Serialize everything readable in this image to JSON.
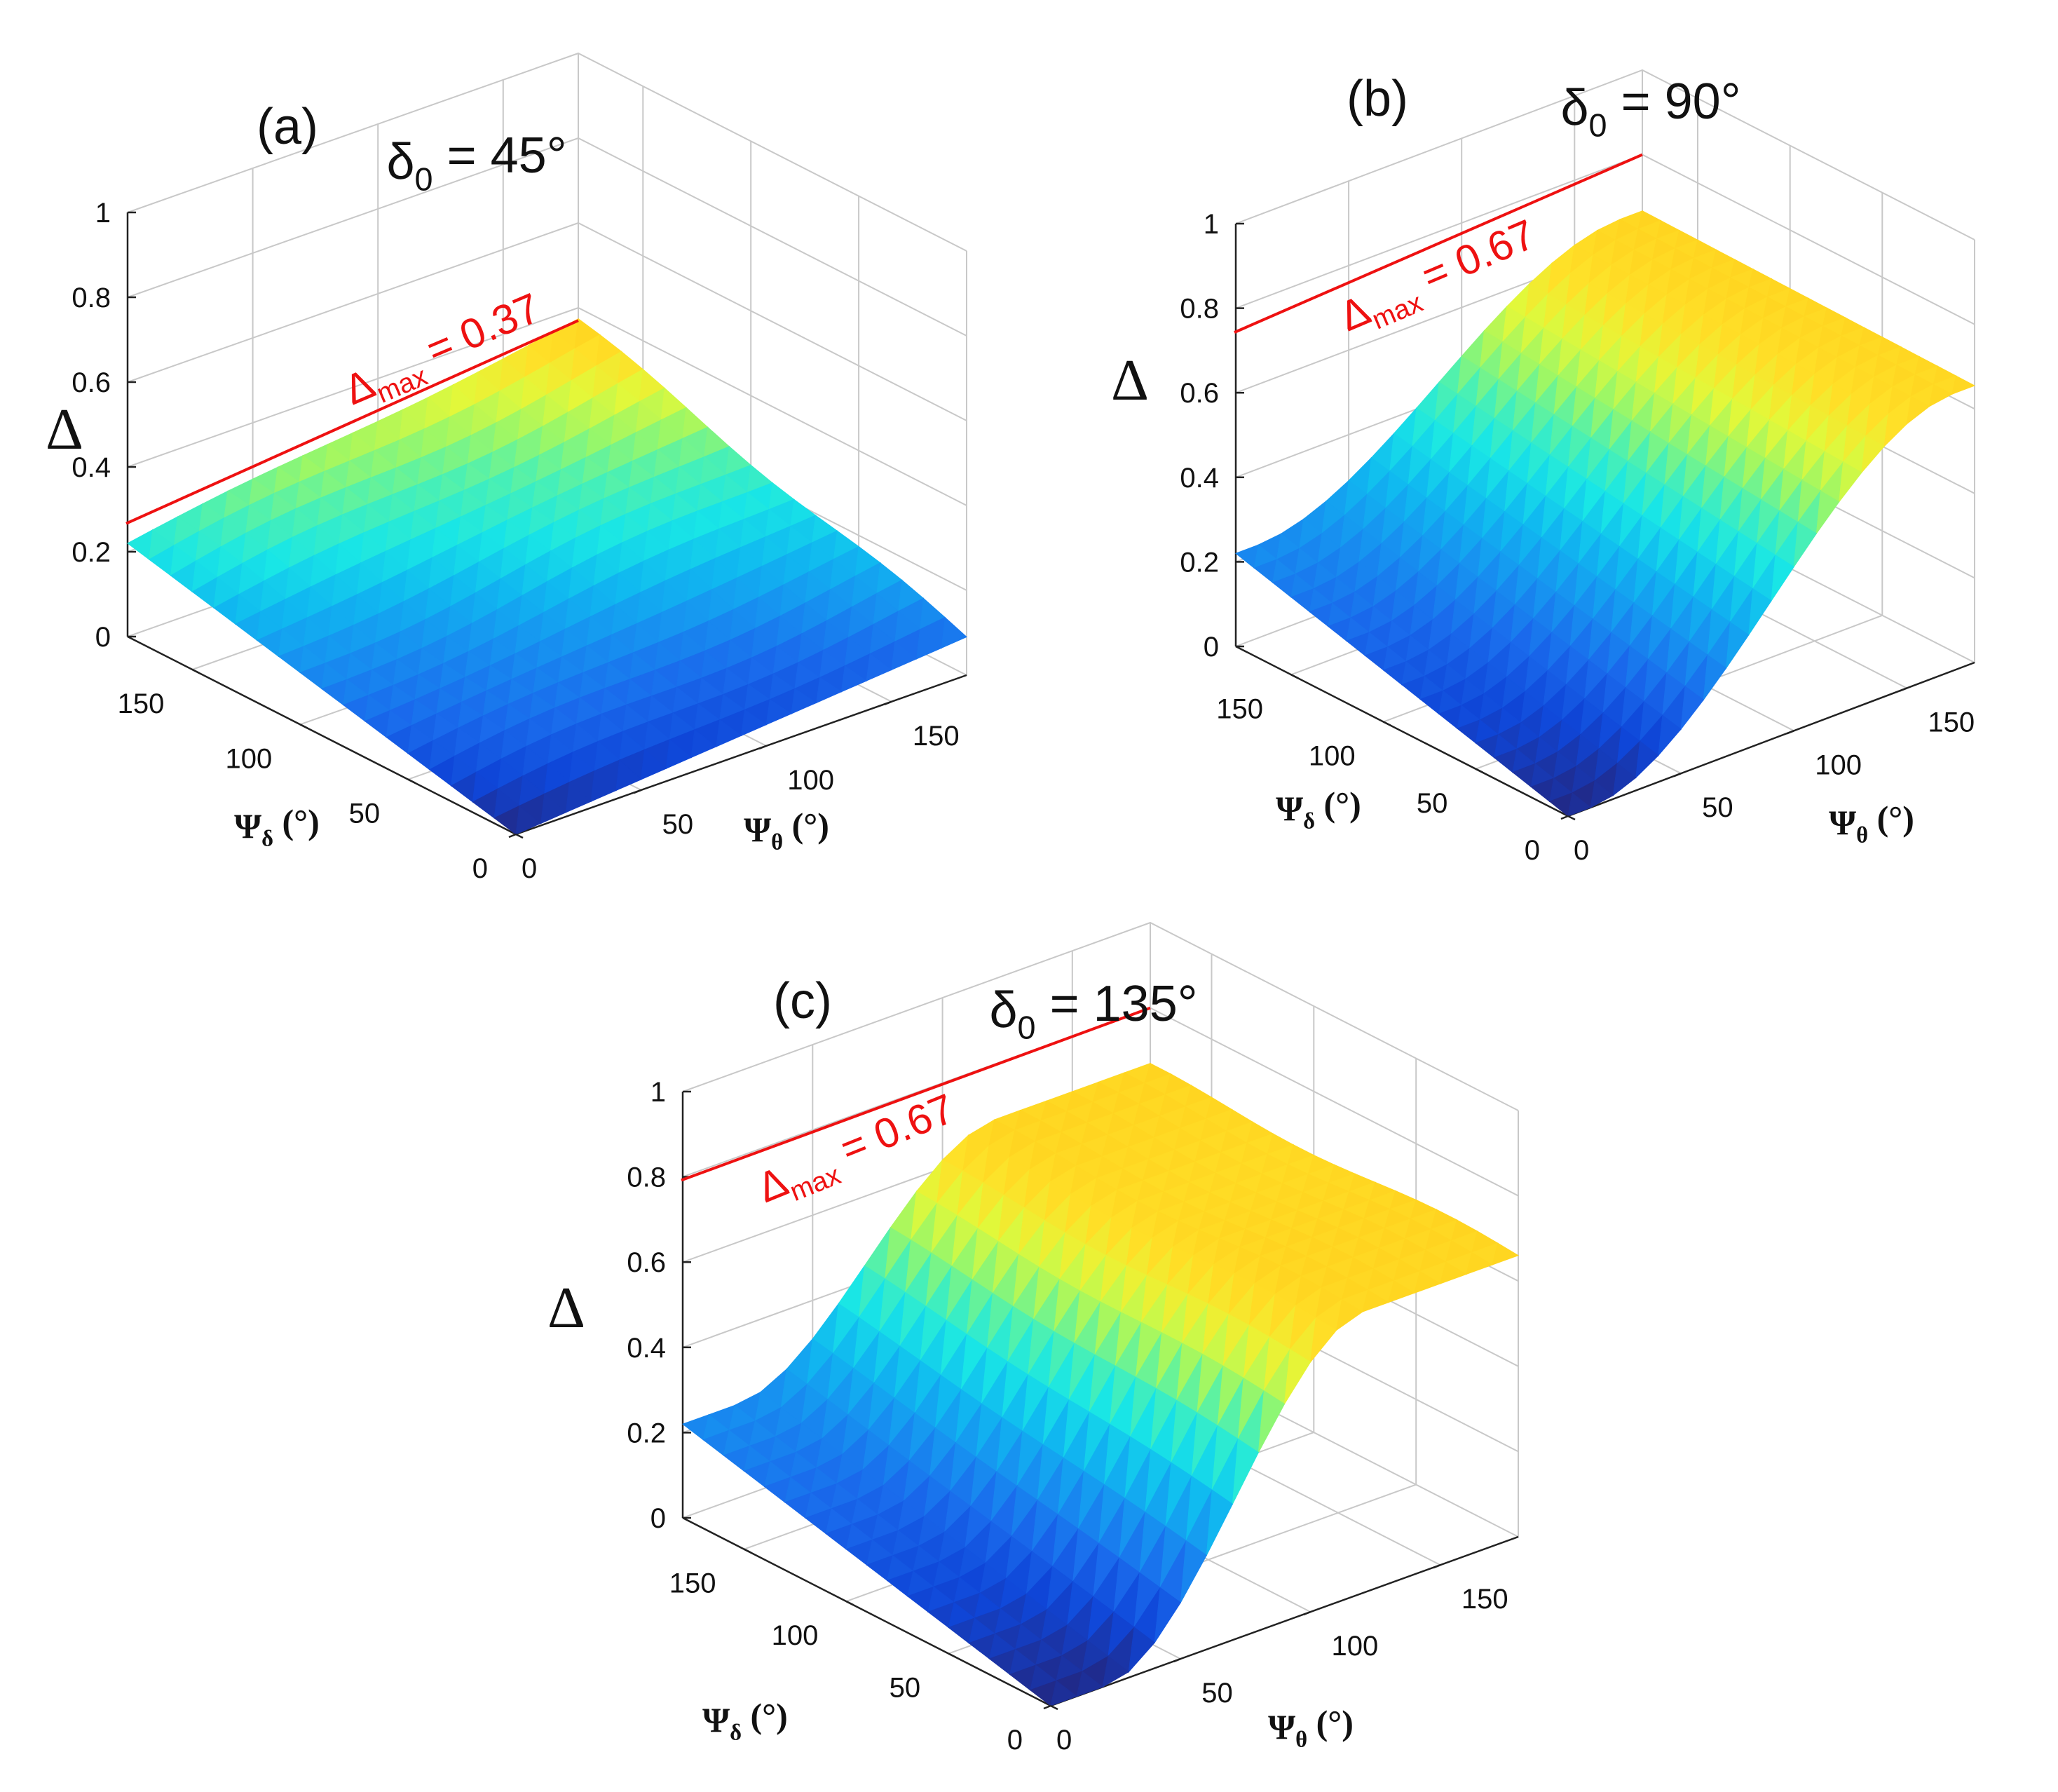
{
  "chart_data": [
    {
      "type": "surface",
      "panel_label": "(a)",
      "title": "δ0 = 45°",
      "title_parts": {
        "symbol": "δ",
        "sub": "0",
        "rest": " = 45°"
      },
      "xlabel": "Ψδ (°)",
      "xlabel_parts": {
        "symbol": "Ψ",
        "sub": "δ",
        "rest": " (°)"
      },
      "ylabel": "Ψθ (°)",
      "ylabel_parts": {
        "symbol": "Ψ",
        "sub": "θ",
        "rest": " (°)"
      },
      "zlabel": "Δ",
      "x_range": [
        0,
        180
      ],
      "y_range": [
        0,
        180
      ],
      "zlim": [
        0,
        1
      ],
      "x_ticks": [
        "0",
        "50",
        "100",
        "150"
      ],
      "y_ticks": [
        "0",
        "50",
        "100",
        "150"
      ],
      "z_ticks": [
        "0",
        "0.2",
        "0.4",
        "0.6",
        "0.8",
        "1"
      ],
      "grid": true,
      "colormap": "parula",
      "surface_corners": {
        "at_psi_delta_0_psi_theta_0": 0.0,
        "at_psi_delta_180_psi_theta_0": 0.22,
        "at_psi_delta_0_psi_theta_180": 0.08,
        "at_psi_delta_180_psi_theta_180": 0.37
      },
      "surface_shape": "smooth ramp rising from origin corner to far corner",
      "max_value": 0.37,
      "max_label": "Δmax = 0.37",
      "max_label_parts": {
        "symbol": "Δ",
        "sub": "max",
        "rest": " = 0.37"
      },
      "max_line_color": "#ee1111"
    },
    {
      "type": "surface",
      "panel_label": "(b)",
      "title": "δ0 = 90°",
      "title_parts": {
        "symbol": "δ",
        "sub": "0",
        "rest": " = 90°"
      },
      "xlabel": "Ψδ (°)",
      "xlabel_parts": {
        "symbol": "Ψ",
        "sub": "δ",
        "rest": " (°)"
      },
      "ylabel": "Ψθ (°)",
      "ylabel_parts": {
        "symbol": "Ψ",
        "sub": "θ",
        "rest": " (°)"
      },
      "zlabel": "Δ",
      "x_range": [
        0,
        180
      ],
      "y_range": [
        0,
        180
      ],
      "zlim": [
        0,
        1
      ],
      "x_ticks": [
        "0",
        "50",
        "100",
        "150"
      ],
      "y_ticks": [
        "0",
        "50",
        "100",
        "150"
      ],
      "z_ticks": [
        "0",
        "0.2",
        "0.4",
        "0.6",
        "0.8",
        "1"
      ],
      "grid": true,
      "colormap": "parula",
      "surface_corners": {
        "at_psi_delta_0_psi_theta_0": 0.0,
        "at_psi_delta_180_psi_theta_0": 0.22,
        "at_psi_delta_0_psi_theta_180": 0.65,
        "at_psi_delta_180_psi_theta_180": 0.67
      },
      "surface_shape": "sigmoid rise along Ψθ, plateau near 0.67",
      "max_value": 0.67,
      "max_label": "Δmax = 0.67",
      "max_label_parts": {
        "symbol": "Δ",
        "sub": "max",
        "rest": " = 0.67"
      },
      "max_line_color": "#ee1111"
    },
    {
      "type": "surface",
      "panel_label": "(c)",
      "title": "δ0 = 135°",
      "title_parts": {
        "symbol": "δ",
        "sub": "0",
        "rest": " = 135°"
      },
      "xlabel": "Ψδ (°)",
      "xlabel_parts": {
        "symbol": "Ψ",
        "sub": "δ",
        "rest": " (°)"
      },
      "ylabel": "Ψθ (°)",
      "ylabel_parts": {
        "symbol": "Ψ",
        "sub": "θ",
        "rest": " (°)"
      },
      "zlabel": "Δ",
      "x_range": [
        0,
        180
      ],
      "y_range": [
        0,
        180
      ],
      "zlim": [
        0,
        1
      ],
      "x_ticks": [
        "0",
        "50",
        "100",
        "150"
      ],
      "y_ticks": [
        "0",
        "50",
        "100",
        "150"
      ],
      "z_ticks": [
        "0",
        "0.2",
        "0.4",
        "0.6",
        "0.8",
        "1"
      ],
      "grid": true,
      "colormap": "parula",
      "surface_corners": {
        "at_psi_delta_0_psi_theta_0": 0.0,
        "at_psi_delta_180_psi_theta_0": 0.22,
        "at_psi_delta_0_psi_theta_180": 0.65,
        "at_psi_delta_180_psi_theta_180": 0.67
      },
      "surface_shape": "steep rise along Ψθ, plateau near 0.67 for Ψθ above ~110°",
      "max_value": 0.67,
      "max_label": "Δmax = 0.67",
      "max_label_parts": {
        "symbol": "Δ",
        "sub": "max",
        "rest": " = 0.67"
      },
      "max_line_color": "#ee1111"
    }
  ]
}
